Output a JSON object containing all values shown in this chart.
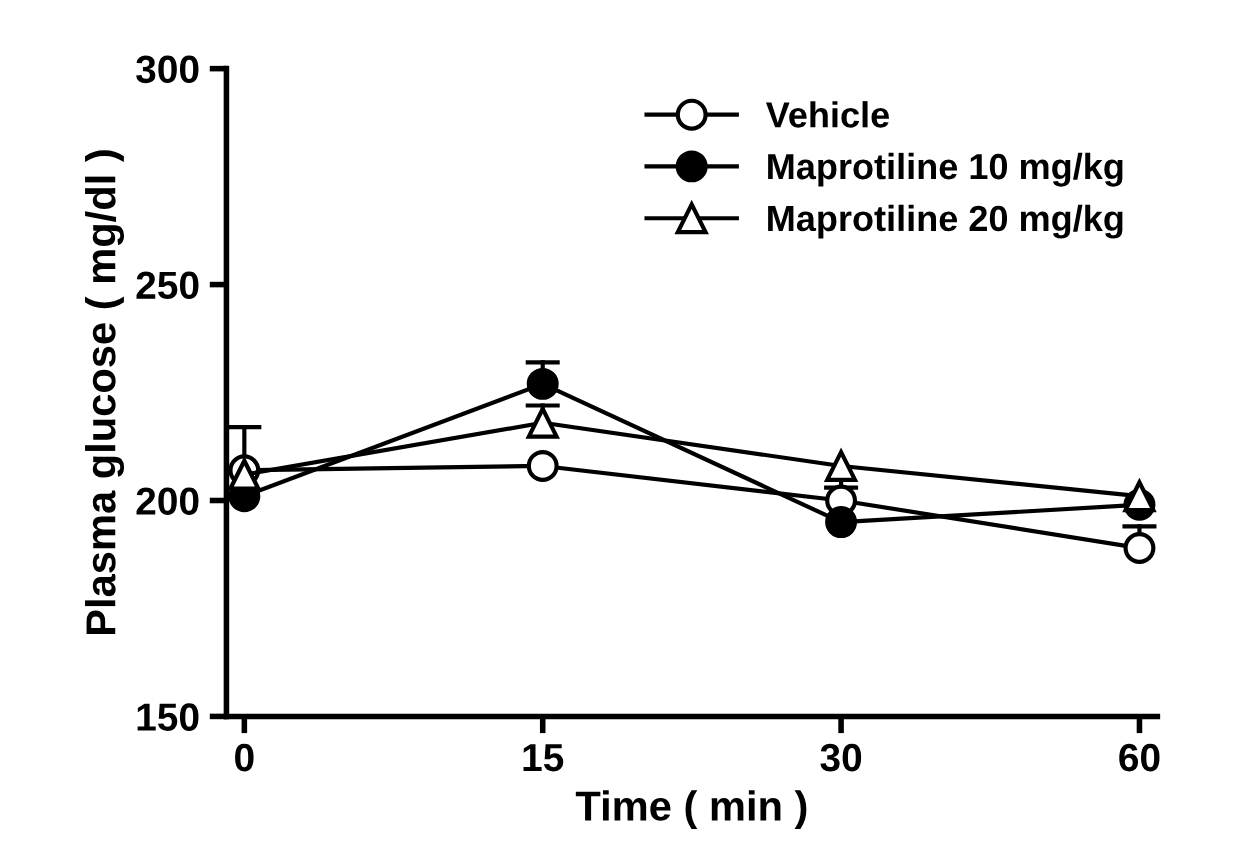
{
  "chart_data": {
    "type": "line",
    "xlabel": "Time ( min )",
    "ylabel": "Plasma glucose ( mg/dl )",
    "categories": [
      "0",
      "15",
      "30",
      "60"
    ],
    "series": [
      {
        "name": "Vehicle",
        "color": "#000000",
        "marker": "circle",
        "values": [
          207,
          208,
          200,
          189
        ],
        "errors": [
          [
            207,
            217
          ],
          null,
          null,
          [
            189,
            194
          ]
        ]
      },
      {
        "name": "Maprotiline 10 mg/kg",
        "color": "#000000",
        "marker": "circle",
        "values": [
          201,
          227,
          195,
          199
        ],
        "errors": [
          null,
          [
            227,
            232
          ],
          null,
          null
        ]
      },
      {
        "name": "Maprotiline 20 mg/kg",
        "color": "#000000",
        "marker": "triangle",
        "values": [
          206,
          218,
          208,
          201
        ],
        "errors": [
          null,
          [
            218,
            222
          ],
          [
            208,
            203
          ],
          null
        ]
      }
    ],
    "ylim": [
      150,
      300
    ],
    "yticks": [
      150,
      200,
      250,
      300
    ],
    "grid": false,
    "legend": "top right",
    "line_style": "solid"
  }
}
